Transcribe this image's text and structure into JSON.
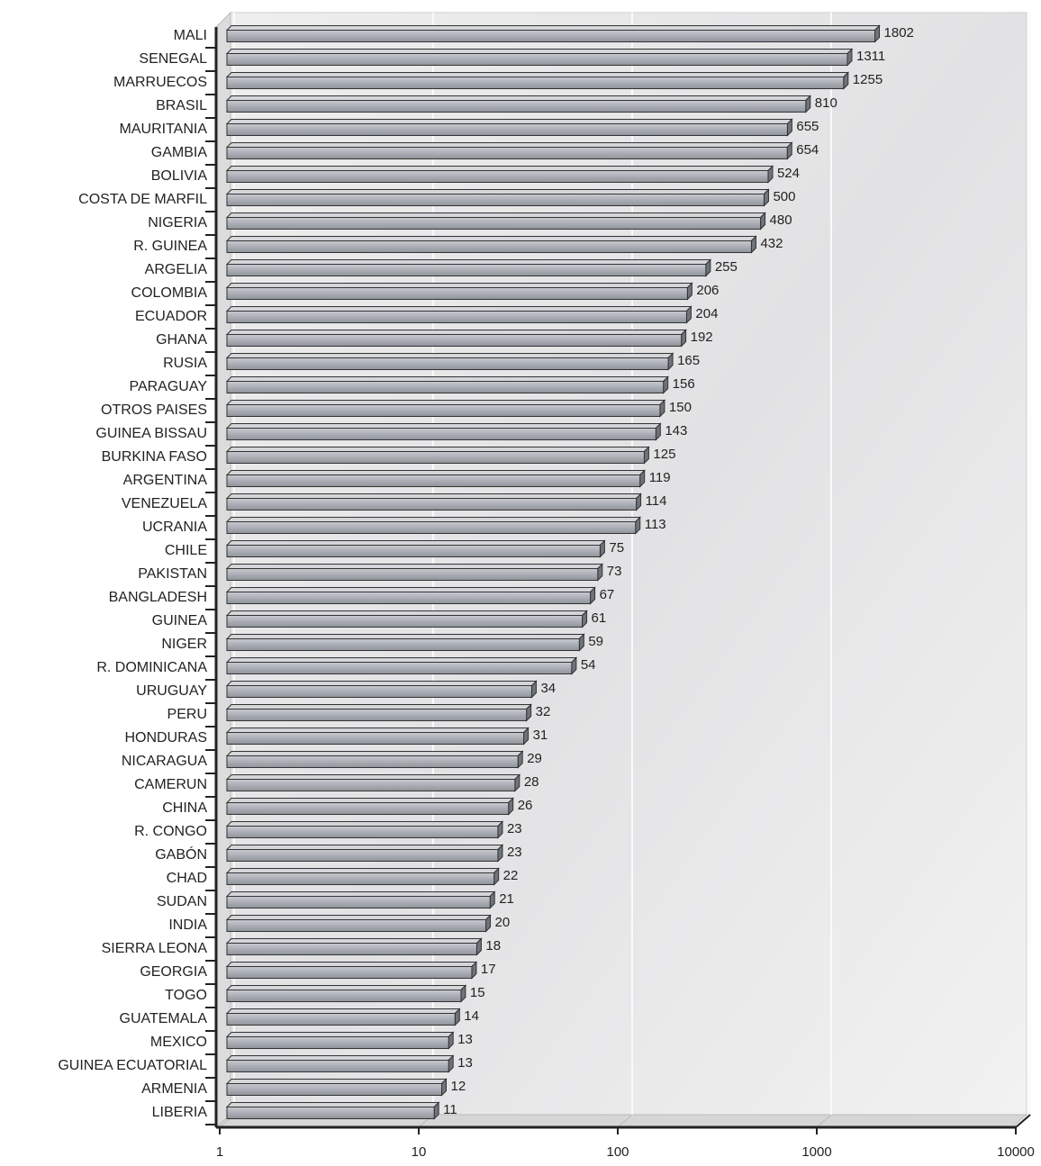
{
  "chart_data": {
    "type": "bar",
    "orientation": "horizontal",
    "categories": [
      "MALI",
      "SENEGAL",
      "MARRUECOS",
      "BRASIL",
      "MAURITANIA",
      "GAMBIA",
      "BOLIVIA",
      "COSTA DE MARFIL",
      "NIGERIA",
      "R. GUINEA",
      "ARGELIA",
      "COLOMBIA",
      "ECUADOR",
      "GHANA",
      "RUSIA",
      "PARAGUAY",
      "OTROS PAISES",
      "GUINEA BISSAU",
      "BURKINA FASO",
      "ARGENTINA",
      "VENEZUELA",
      "UCRANIA",
      "CHILE",
      "PAKISTAN",
      "BANGLADESH",
      "GUINEA",
      "NIGER",
      "R. DOMINICANA",
      "URUGUAY",
      "PERU",
      "HONDURAS",
      "NICARAGUA",
      "CAMERUN",
      "CHINA",
      "R. CONGO",
      "GABÓN",
      "CHAD",
      "SUDAN",
      "INDIA",
      "SIERRA LEONA",
      "GEORGIA",
      "TOGO",
      "GUATEMALA",
      "MEXICO",
      "GUINEA ECUATORIAL",
      "ARMENIA",
      "LIBERIA"
    ],
    "values": [
      1802,
      1311,
      1255,
      810,
      655,
      654,
      524,
      500,
      480,
      432,
      255,
      206,
      204,
      192,
      165,
      156,
      150,
      143,
      125,
      119,
      114,
      113,
      75,
      73,
      67,
      61,
      59,
      54,
      34,
      32,
      31,
      29,
      28,
      26,
      23,
      23,
      22,
      21,
      20,
      18,
      17,
      15,
      14,
      13,
      13,
      12,
      11
    ],
    "color": "#a9acb3",
    "xlim": [
      1,
      10000
    ],
    "xticks": [
      1,
      10,
      100,
      1000,
      10000
    ],
    "log_scale": true,
    "grid": true
  }
}
